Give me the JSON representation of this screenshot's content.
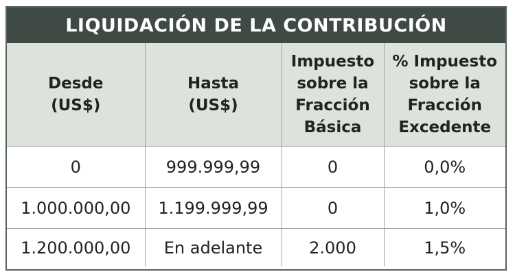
{
  "title": "LIQUIDACIÓN DE LA CONTRIBUCIÓN",
  "headers": [
    [
      "Desde",
      "(US$)"
    ],
    [
      "Hasta",
      "(US$)"
    ],
    [
      "Impuesto",
      "sobre la",
      "Fracción",
      "Básica"
    ],
    [
      "% Impuesto",
      "sobre la",
      "Fracción",
      "Excedente"
    ]
  ],
  "rows": [
    [
      "0",
      "999.999,99",
      "0",
      "0,0%"
    ],
    [
      "1.000.000,00",
      "1.199.999,99",
      "0",
      "1,0%"
    ],
    [
      "1.200.000,00",
      "En adelante",
      "2.000",
      "1,5%"
    ]
  ],
  "colors": {
    "title_background": "#3e4a43",
    "header_background": "#dde2dd",
    "border": "#9aa59d"
  }
}
